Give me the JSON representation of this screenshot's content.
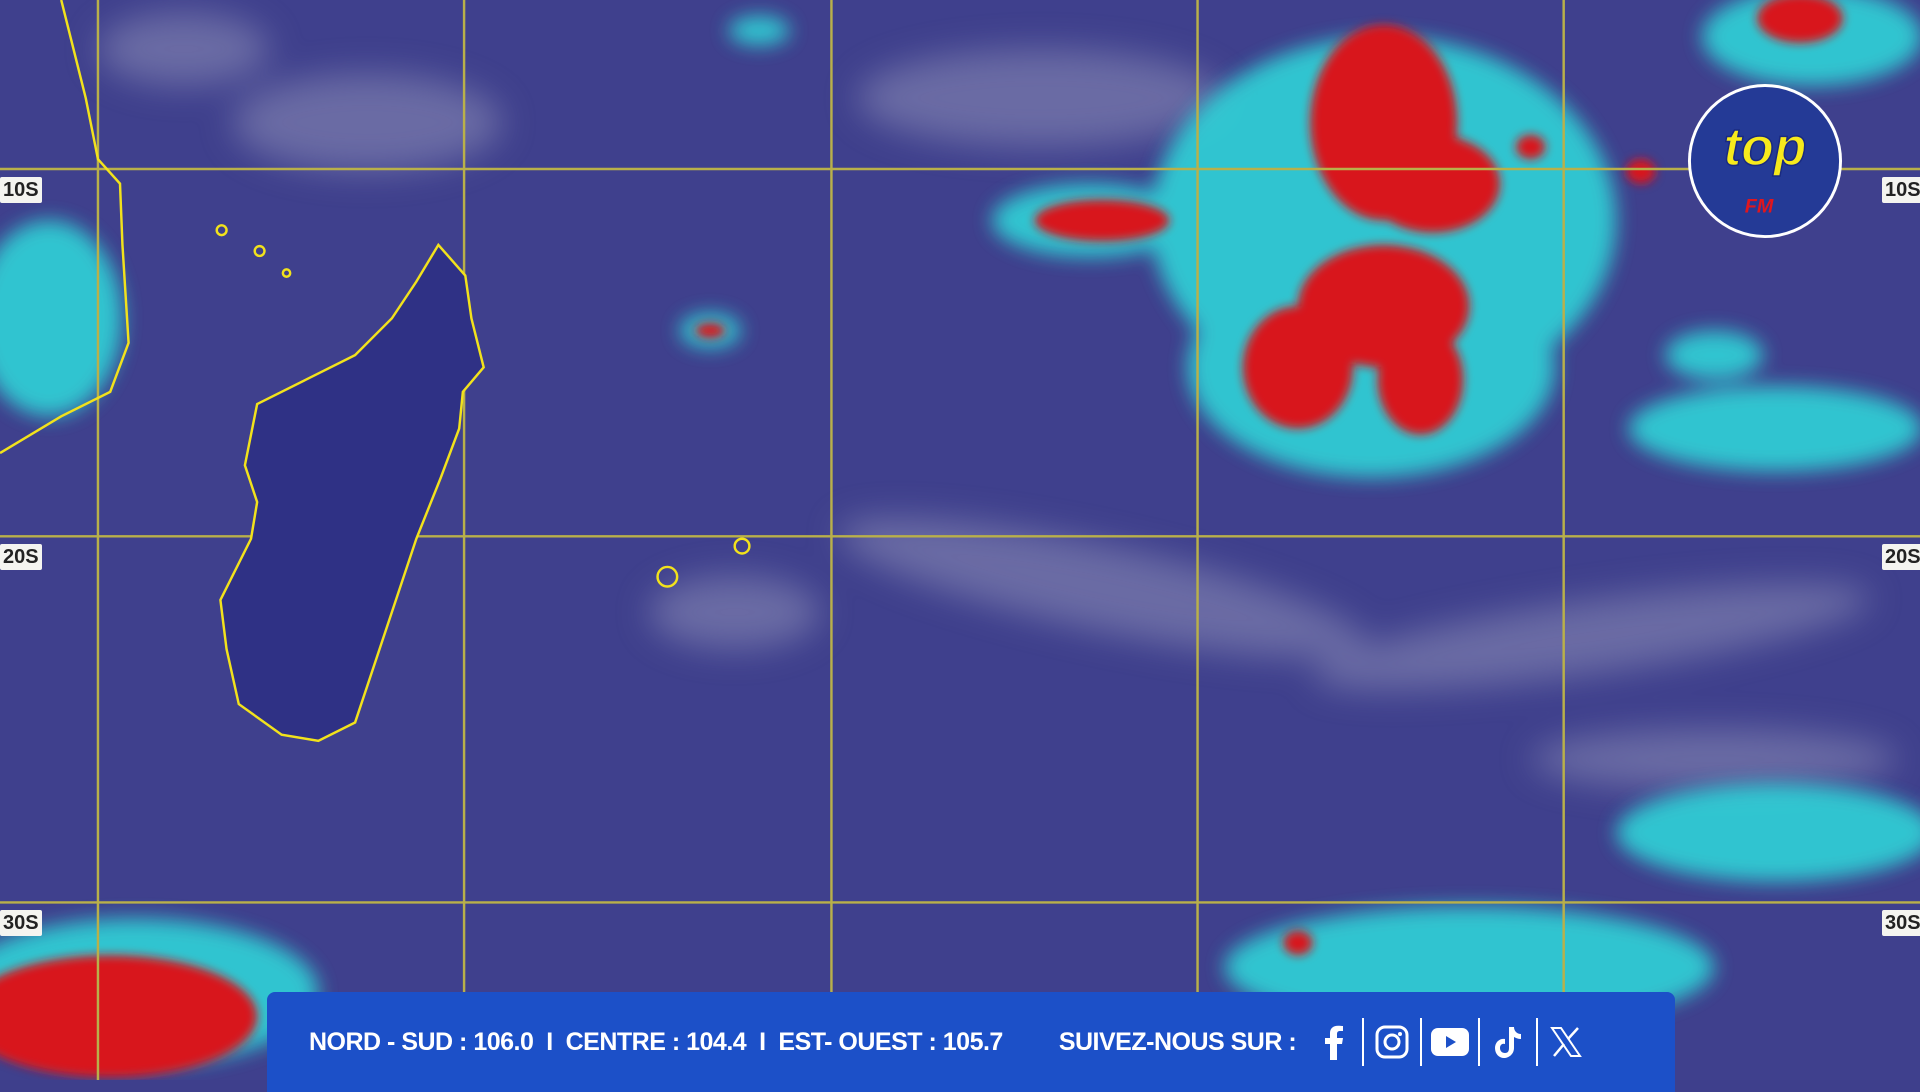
{
  "map": {
    "latitude_labels": [
      "10S",
      "20S",
      "30S"
    ],
    "right_labels": [
      "10S",
      "20S",
      "30S"
    ],
    "colors": {
      "ocean": "#3e3f8c",
      "cold_cloud": "#e0101a",
      "cloud_edge": "#2ee0e0",
      "coastline": "#f2e21c",
      "grid": "#b9b04a"
    }
  },
  "logo": {
    "text": "top",
    "subtext": "FM",
    "colors": {
      "disc": "#243a96",
      "text": "#f7ea1c",
      "sub": "#e0161e"
    }
  },
  "footer": {
    "frequencies": "NORD - SUD : 106.0  I  CENTRE : 104.4  I  EST- OUEST : 105.7",
    "follow_label": "SUIVEZ-NOUS SUR :",
    "social": [
      "facebook-icon",
      "instagram-icon",
      "youtube-icon",
      "tiktok-icon",
      "x-icon"
    ],
    "background": "#1c50c8"
  }
}
